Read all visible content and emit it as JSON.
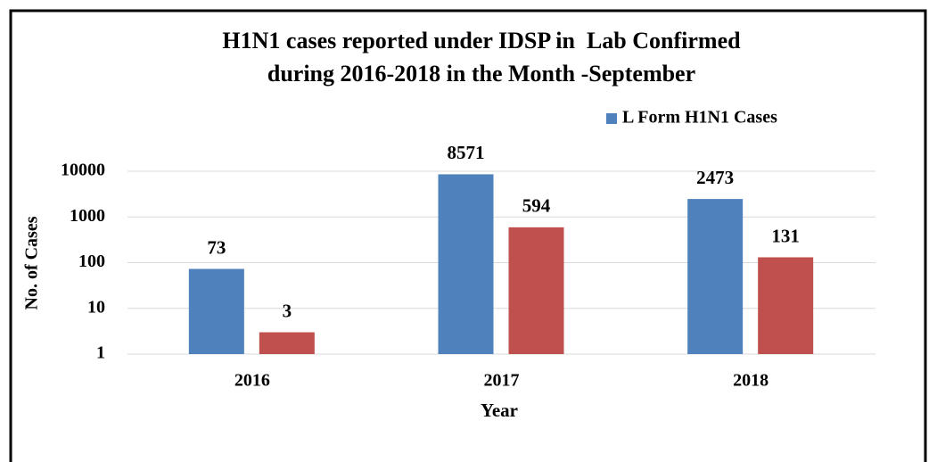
{
  "chart_data": {
    "type": "bar",
    "title": [
      "H1N1 cases reported under IDSP in  Lab Confirmed",
      "during 2016-2018 in the Month -September"
    ],
    "categories": [
      "2016",
      "2017",
      "2018"
    ],
    "series": [
      {
        "name": "L Form H1N1 Cases",
        "color": "#4f81bd",
        "values": [
          73,
          8571,
          2473
        ]
      },
      {
        "color": "#c0504d",
        "values": [
          3,
          594,
          131
        ]
      }
    ],
    "ylim": [
      1,
      10000
    ],
    "yticks": [
      1,
      10,
      100,
      1000,
      10000
    ],
    "log_scale": true,
    "grid": true,
    "ylabel": "No. of Cases",
    "xlabel": "Year",
    "legend": "top-right"
  }
}
